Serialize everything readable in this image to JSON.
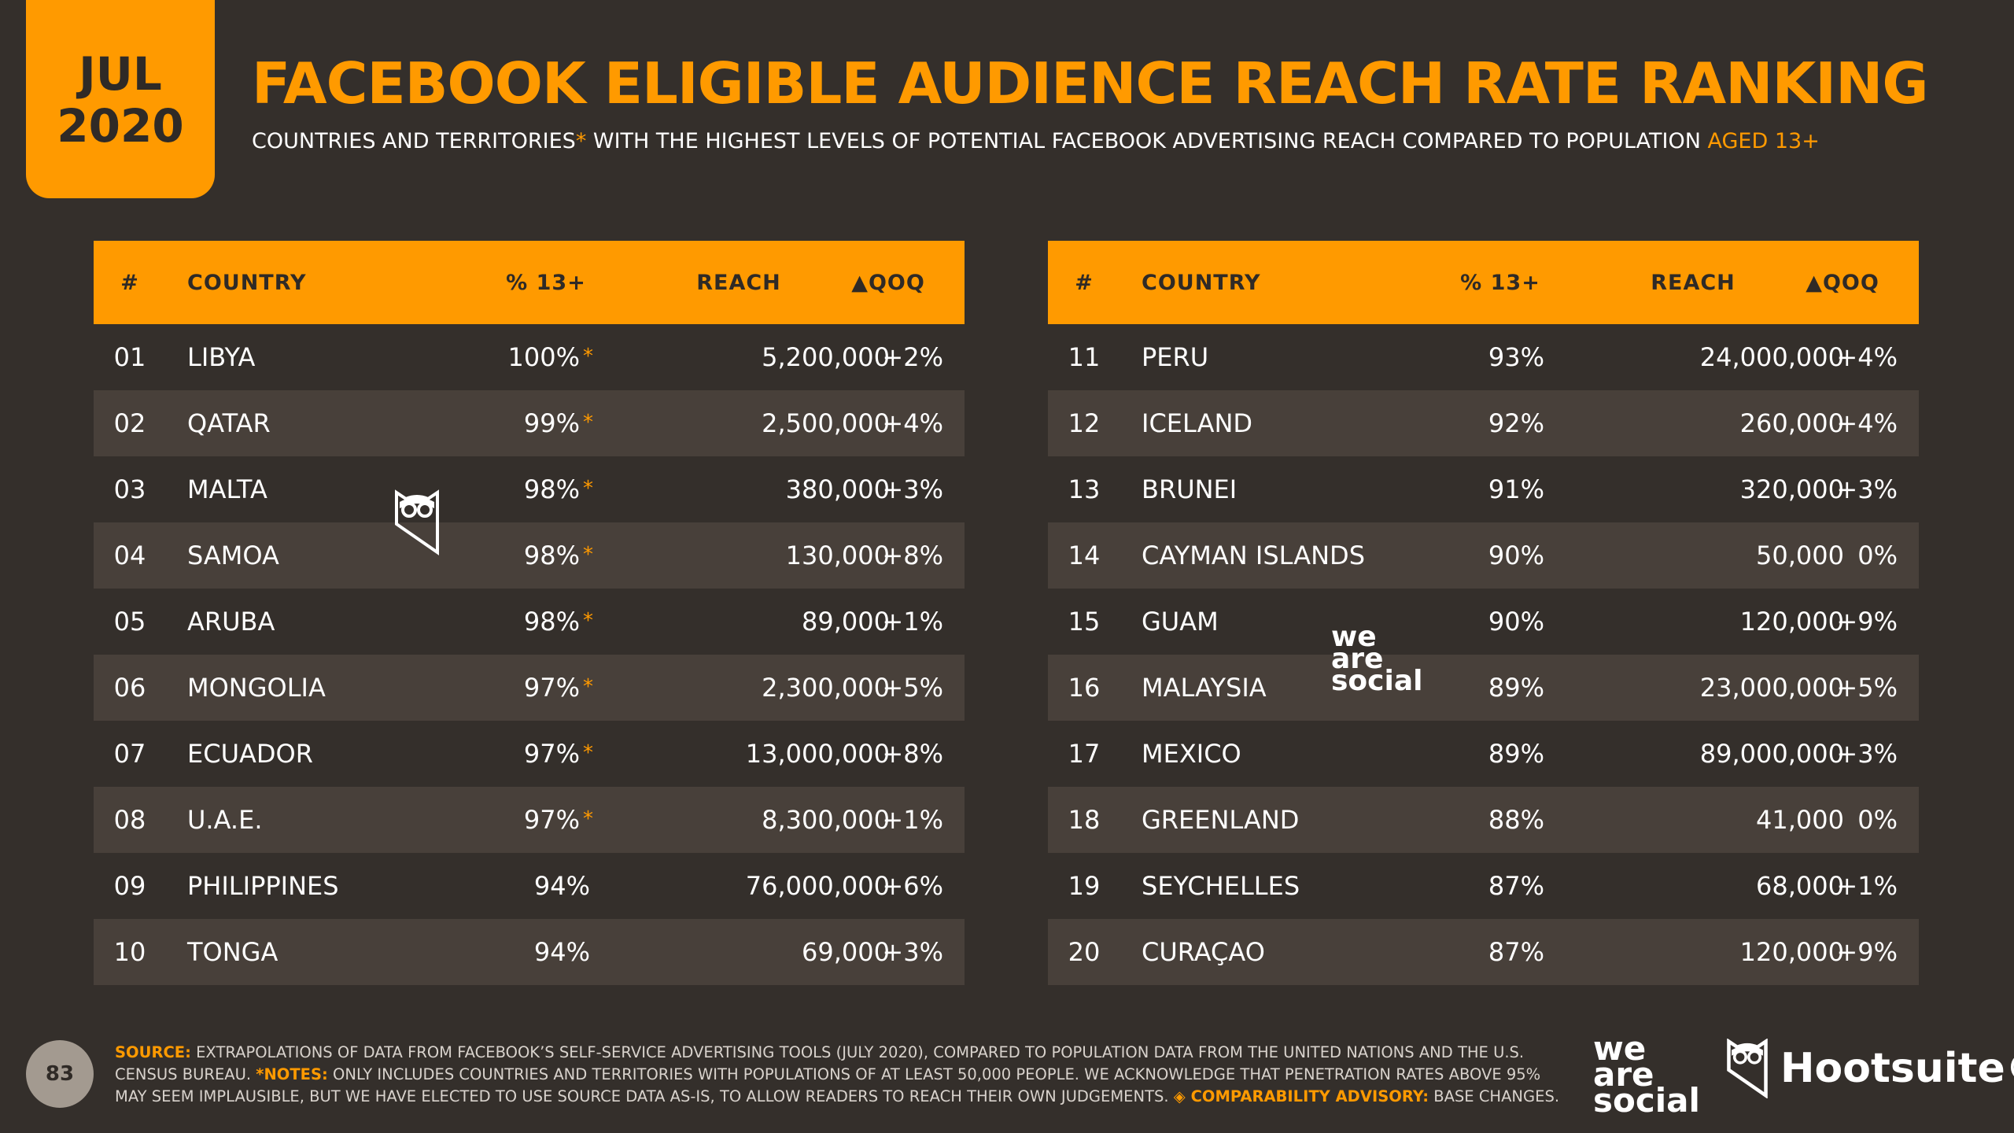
{
  "badge": {
    "month": "JUL",
    "year": "2020"
  },
  "title": "FACEBOOK ELIGIBLE AUDIENCE REACH RATE RANKING",
  "subtitle": {
    "part1": "COUNTRIES AND TERRITORIES",
    "asterisk": "*",
    "part2": " WITH THE HIGHEST LEVELS OF POTENTIAL FACEBOOK ADVERTISING REACH COMPARED TO POPULATION ",
    "aged": "AGED 13+"
  },
  "headers": {
    "rank": "#",
    "country": "COUNTRY",
    "pct": "% 13+",
    "reach": "REACH",
    "qoq": "▲QOQ"
  },
  "left_rows": [
    {
      "rank": "01",
      "country": "LIBYA",
      "pct": "100%",
      "ast": "*",
      "reach": "5,200,000",
      "qoq": "+2%"
    },
    {
      "rank": "02",
      "country": "QATAR",
      "pct": "99%",
      "ast": "*",
      "reach": "2,500,000",
      "qoq": "+4%"
    },
    {
      "rank": "03",
      "country": "MALTA",
      "pct": "98%",
      "ast": "*",
      "reach": "380,000",
      "qoq": "+3%"
    },
    {
      "rank": "04",
      "country": "SAMOA",
      "pct": "98%",
      "ast": "*",
      "reach": "130,000",
      "qoq": "+8%"
    },
    {
      "rank": "05",
      "country": "ARUBA",
      "pct": "98%",
      "ast": "*",
      "reach": "89,000",
      "qoq": "+1%"
    },
    {
      "rank": "06",
      "country": "MONGOLIA",
      "pct": "97%",
      "ast": "*",
      "reach": "2,300,000",
      "qoq": "+5%"
    },
    {
      "rank": "07",
      "country": "ECUADOR",
      "pct": "97%",
      "ast": "*",
      "reach": "13,000,000",
      "qoq": "+8%"
    },
    {
      "rank": "08",
      "country": "U.A.E.",
      "pct": "97%",
      "ast": "*",
      "reach": "8,300,000",
      "qoq": "+1%"
    },
    {
      "rank": "09",
      "country": "PHILIPPINES",
      "pct": "94%",
      "ast": "",
      "reach": "76,000,000",
      "qoq": "+6%"
    },
    {
      "rank": "10",
      "country": "TONGA",
      "pct": "94%",
      "ast": "",
      "reach": "69,000",
      "qoq": "+3%"
    }
  ],
  "right_rows": [
    {
      "rank": "11",
      "country": "PERU",
      "pct": "93%",
      "ast": "",
      "reach": "24,000,000",
      "qoq": "+4%"
    },
    {
      "rank": "12",
      "country": "ICELAND",
      "pct": "92%",
      "ast": "",
      "reach": "260,000",
      "qoq": "+4%"
    },
    {
      "rank": "13",
      "country": "BRUNEI",
      "pct": "91%",
      "ast": "",
      "reach": "320,000",
      "qoq": "+3%"
    },
    {
      "rank": "14",
      "country": "CAYMAN ISLANDS",
      "pct": "90%",
      "ast": "",
      "reach": "50,000",
      "qoq": "0%"
    },
    {
      "rank": "15",
      "country": "GUAM",
      "pct": "90%",
      "ast": "",
      "reach": "120,000",
      "qoq": "+9%"
    },
    {
      "rank": "16",
      "country": "MALAYSIA",
      "pct": "89%",
      "ast": "",
      "reach": "23,000,000",
      "qoq": "+5%"
    },
    {
      "rank": "17",
      "country": "MEXICO",
      "pct": "89%",
      "ast": "",
      "reach": "89,000,000",
      "qoq": "+3%"
    },
    {
      "rank": "18",
      "country": "GREENLAND",
      "pct": "88%",
      "ast": "",
      "reach": "41,000",
      "qoq": "0%"
    },
    {
      "rank": "19",
      "country": "SEYCHELLES",
      "pct": "87%",
      "ast": "",
      "reach": "68,000",
      "qoq": "+1%"
    },
    {
      "rank": "20",
      "country": "CURAÇAO",
      "pct": "87%",
      "ast": "",
      "reach": "120,000",
      "qoq": "+9%"
    }
  ],
  "watermark": {
    "we": "we",
    "are": "are",
    "social": "social"
  },
  "footer": {
    "page_number": "83",
    "source_label": "SOURCE:",
    "source_text": " EXTRAPOLATIONS OF DATA FROM FACEBOOK’S SELF-SERVICE ADVERTISING TOOLS (JULY 2020), COMPARED TO POPULATION DATA FROM THE UNITED NATIONS AND THE U.S. CENSUS BUREAU. ",
    "notes_label": "*NOTES:",
    "notes_text": " ONLY INCLUDES COUNTRIES AND TERRITORIES WITH POPULATIONS OF AT LEAST 50,000 PEOPLE. WE ACKNOWLEDGE THAT PENETRATION RATES ABOVE 95% MAY SEEM IMPLAUSIBLE, BUT WE HAVE ELECTED TO USE SOURCE DATA AS-IS, TO ALLOW READERS TO REACH THEIR OWN JUDGEMENTS. ",
    "advisory_label": "◈ COMPARABILITY ADVISORY:",
    "advisory_text": " BASE CHANGES.",
    "hootsuite": "Hootsuite®"
  },
  "colors": {
    "accent": "#ff9a00",
    "background": "#342f2b",
    "row_alt": "#48403a"
  }
}
